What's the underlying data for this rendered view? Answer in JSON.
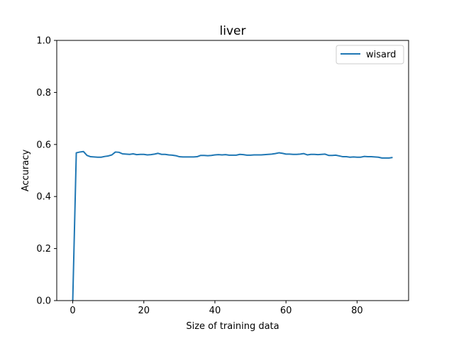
{
  "chart_data": {
    "type": "line",
    "title": "liver",
    "xlabel": "Size of training data",
    "ylabel": "Accuracy",
    "xlim": [
      -4.5,
      94.5
    ],
    "ylim": [
      0,
      1
    ],
    "xticks": [
      0,
      20,
      40,
      60,
      80
    ],
    "yticks": [
      0.0,
      0.2,
      0.4,
      0.6,
      0.8,
      1.0
    ],
    "xtick_labels": [
      "0",
      "20",
      "40",
      "60",
      "80"
    ],
    "ytick_labels": [
      "0.0",
      "0.2",
      "0.4",
      "0.6",
      "0.8",
      "1.0"
    ],
    "grid": false,
    "legend": {
      "position": "top-right"
    },
    "series": [
      {
        "name": "wisard",
        "color": "#1f77b4",
        "x": [
          0,
          1,
          2,
          3,
          4,
          5,
          6,
          7,
          8,
          9,
          10,
          11,
          12,
          13,
          14,
          15,
          16,
          17,
          18,
          19,
          20,
          21,
          22,
          23,
          24,
          25,
          26,
          27,
          28,
          29,
          30,
          31,
          32,
          33,
          34,
          35,
          36,
          37,
          38,
          39,
          40,
          41,
          42,
          43,
          44,
          45,
          46,
          47,
          48,
          49,
          50,
          51,
          52,
          53,
          54,
          55,
          56,
          57,
          58,
          59,
          60,
          61,
          62,
          63,
          64,
          65,
          66,
          67,
          68,
          69,
          70,
          71,
          72,
          73,
          74,
          75,
          76,
          77,
          78,
          79,
          80,
          81,
          82,
          83,
          84,
          85,
          86,
          87,
          88,
          89,
          90
        ],
        "y": [
          0.0,
          0.568,
          0.571,
          0.573,
          0.558,
          0.553,
          0.552,
          0.551,
          0.551,
          0.554,
          0.556,
          0.56,
          0.571,
          0.57,
          0.564,
          0.563,
          0.562,
          0.564,
          0.561,
          0.562,
          0.562,
          0.56,
          0.561,
          0.563,
          0.566,
          0.562,
          0.562,
          0.56,
          0.559,
          0.557,
          0.553,
          0.552,
          0.552,
          0.552,
          0.552,
          0.553,
          0.558,
          0.558,
          0.557,
          0.558,
          0.56,
          0.561,
          0.56,
          0.561,
          0.559,
          0.559,
          0.559,
          0.562,
          0.561,
          0.559,
          0.559,
          0.56,
          0.56,
          0.56,
          0.561,
          0.562,
          0.563,
          0.565,
          0.568,
          0.566,
          0.563,
          0.563,
          0.562,
          0.562,
          0.563,
          0.565,
          0.56,
          0.562,
          0.562,
          0.561,
          0.562,
          0.563,
          0.558,
          0.558,
          0.559,
          0.556,
          0.553,
          0.553,
          0.551,
          0.552,
          0.551,
          0.551,
          0.554,
          0.553,
          0.553,
          0.552,
          0.551,
          0.548,
          0.548,
          0.548,
          0.55
        ]
      }
    ]
  }
}
